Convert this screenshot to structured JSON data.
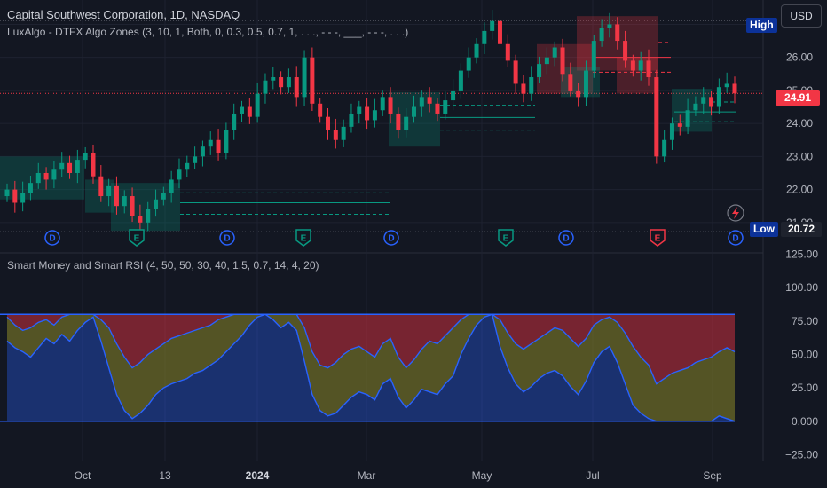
{
  "header": {
    "title": "Capital Southwest Corporation, 1D, NASDAQ",
    "indicator": "LuxAlgo - DTFX Algo Zones (3, 10, 1, Both, 0, 0.3, 0.5, 0.7, 1, . . ., - - -, ___, - - -, . . .)",
    "currency_button": "USD",
    "high_label": "High"
  },
  "price_tags": {
    "last": "24.91",
    "low_label": "Low",
    "low_value": "20.72"
  },
  "lower_title": "Smart Money and Smart RSI (4, 50, 50, 30, 40, 1.5, 0.7, 14, 4, 20)",
  "colors": {
    "bg": "#131722",
    "up": "#089981",
    "down": "#f23645",
    "blue": "#2962ff",
    "olive": "#6b6a25",
    "red_zone": "#7a2c34"
  },
  "icons": {
    "lightning": "lightning-icon"
  },
  "chart_data": [
    {
      "type": "candlestick",
      "title": "Capital Southwest Corporation, 1D, NASDAQ",
      "x_ticks": [
        "Oct",
        "13",
        "2024",
        "Mar",
        "May",
        "Jul",
        "Sep"
      ],
      "y_ticks": [
        "21.00",
        "22.00",
        "23.00",
        "24.00",
        "25.00",
        "26.00",
        "27.00"
      ],
      "ylim": [
        20.7,
        27.2
      ],
      "last_price": 24.91,
      "low": 20.72,
      "series_close": [
        22.0,
        21.6,
        21.9,
        22.2,
        22.5,
        22.3,
        22.6,
        22.8,
        22.5,
        22.9,
        23.1,
        22.4,
        21.8,
        22.1,
        21.5,
        21.8,
        21.2,
        21.0,
        21.4,
        21.7,
        21.9,
        22.3,
        22.6,
        22.8,
        23.0,
        23.3,
        23.5,
        23.1,
        23.8,
        24.3,
        24.5,
        24.2,
        24.9,
        25.3,
        25.4,
        25.1,
        25.4,
        24.8,
        26.0,
        24.6,
        24.2,
        23.8,
        23.5,
        23.9,
        24.3,
        24.5,
        24.1,
        24.4,
        24.8,
        24.3,
        23.8,
        24.2,
        24.5,
        24.8,
        24.6,
        24.3,
        24.7,
        25.0,
        25.6,
        26.0,
        26.4,
        26.8,
        27.1,
        26.4,
        25.9,
        25.2,
        24.9,
        25.4,
        25.8,
        26.0,
        26.3,
        25.5,
        25.0,
        24.8,
        25.6,
        26.5,
        26.9,
        27.0,
        26.5,
        25.9,
        25.6,
        25.9,
        25.4,
        23.0,
        23.5,
        24.0,
        23.9,
        24.4,
        24.6,
        24.8,
        24.5,
        25.1,
        25.2,
        24.91
      ],
      "markers": [
        "D",
        "E",
        "D",
        "E",
        "D",
        "E",
        "D",
        "E",
        "D"
      ],
      "zones": [
        "demand",
        "demand",
        "demand",
        "demand",
        "supply",
        "supply",
        "demand",
        "supply",
        "demand"
      ]
    },
    {
      "type": "area",
      "title": "Smart Money and Smart RSI (4, 50, 50, 30, 40, 1.5, 0.7, 14, 4, 20)",
      "y_ticks": [
        "125.00",
        "100.00",
        "75.00",
        "50.00",
        "25.00",
        "0.000",
        "−25.00"
      ],
      "ylim": [
        -30,
        128
      ],
      "upper_band": 80,
      "lower_band": 0,
      "series": [
        {
          "values": [
            60,
            55,
            52,
            48,
            55,
            62,
            58,
            65,
            60,
            68,
            74,
            78,
            60,
            40,
            20,
            8,
            2,
            6,
            12,
            20,
            25,
            28,
            30,
            32,
            36,
            38,
            42,
            46,
            52,
            58,
            64,
            72,
            78,
            80,
            76,
            70,
            74,
            68,
            45,
            20,
            8,
            4,
            6,
            12,
            18,
            22,
            20,
            16,
            28,
            32,
            18,
            10,
            16,
            24,
            22,
            20,
            28,
            34,
            50,
            62,
            72,
            78,
            80,
            56,
            40,
            28,
            22,
            26,
            32,
            36,
            38,
            34,
            26,
            20,
            30,
            44,
            52,
            56,
            44,
            28,
            12,
            6,
            2,
            0,
            0,
            0,
            0,
            0,
            0,
            0,
            0,
            4,
            2,
            0
          ]
        },
        {
          "values": [
            78,
            72,
            68,
            70,
            74,
            76,
            72,
            78,
            80,
            80,
            80,
            80,
            76,
            70,
            58,
            48,
            40,
            44,
            50,
            54,
            58,
            62,
            64,
            66,
            68,
            70,
            72,
            76,
            78,
            80,
            80,
            80,
            80,
            80,
            80,
            80,
            80,
            80,
            70,
            52,
            42,
            40,
            44,
            50,
            54,
            56,
            52,
            48,
            58,
            62,
            48,
            40,
            46,
            54,
            60,
            58,
            64,
            70,
            76,
            80,
            80,
            80,
            80,
            76,
            66,
            58,
            54,
            58,
            62,
            66,
            70,
            68,
            62,
            56,
            62,
            72,
            76,
            78,
            74,
            66,
            56,
            48,
            42,
            28,
            32,
            36,
            38,
            40,
            44,
            46,
            48,
            52,
            55,
            52
          ]
        }
      ]
    }
  ]
}
